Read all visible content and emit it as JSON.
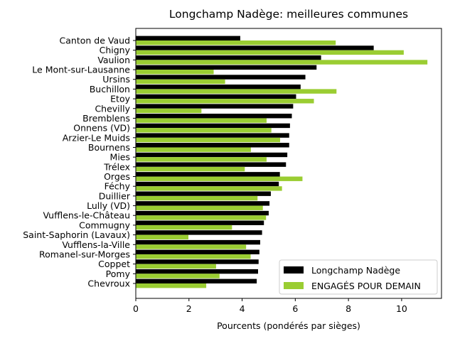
{
  "chart_data": {
    "type": "bar",
    "orientation": "horizontal",
    "title": "Longchamp Nadège: meilleures communes",
    "xlabel": "Pourcents (pondérés par sièges)",
    "ylabel": "",
    "xlim": [
      0,
      11.5
    ],
    "xticks": [
      0,
      2,
      4,
      6,
      8,
      10
    ],
    "grid": false,
    "legend_position": "bottom-right",
    "categories": [
      "Canton de Vaud",
      "Chigny",
      "Vaulion",
      "Le Mont-sur-Lausanne",
      "Ursins",
      "Buchillon",
      "Etoy",
      "Chevilly",
      "Bremblens",
      "Onnens (VD)",
      "Arzier-Le Muids",
      "Bournens",
      "Mies",
      "Trélex",
      "Orges",
      "Féchy",
      "Duillier",
      "Lully (VD)",
      "Vufflens-le-Château",
      "Commugny",
      "Saint-Saphorin (Lavaux)",
      "Vufflens-la-Ville",
      "Romanel-sur-Morges",
      "Coppet",
      "Pomy",
      "Chevroux"
    ],
    "series": [
      {
        "name": "Longchamp Nadège",
        "color": "#000000",
        "values": [
          3.93,
          8.95,
          6.97,
          6.8,
          6.38,
          6.2,
          6.03,
          5.92,
          5.87,
          5.8,
          5.77,
          5.77,
          5.7,
          5.65,
          5.42,
          5.38,
          5.08,
          5.03,
          5.0,
          4.82,
          4.75,
          4.68,
          4.65,
          4.62,
          4.6,
          4.55
        ]
      },
      {
        "name": "ENGAGÉS POUR DEMAIN",
        "color": "#9acd32",
        "values": [
          7.52,
          10.08,
          10.97,
          2.93,
          3.36,
          7.55,
          6.7,
          2.47,
          4.92,
          5.1,
          5.43,
          4.33,
          4.92,
          4.1,
          6.27,
          5.5,
          4.58,
          4.78,
          4.9,
          3.62,
          1.98,
          4.15,
          4.32,
          3.02,
          3.15,
          2.65
        ]
      }
    ]
  }
}
